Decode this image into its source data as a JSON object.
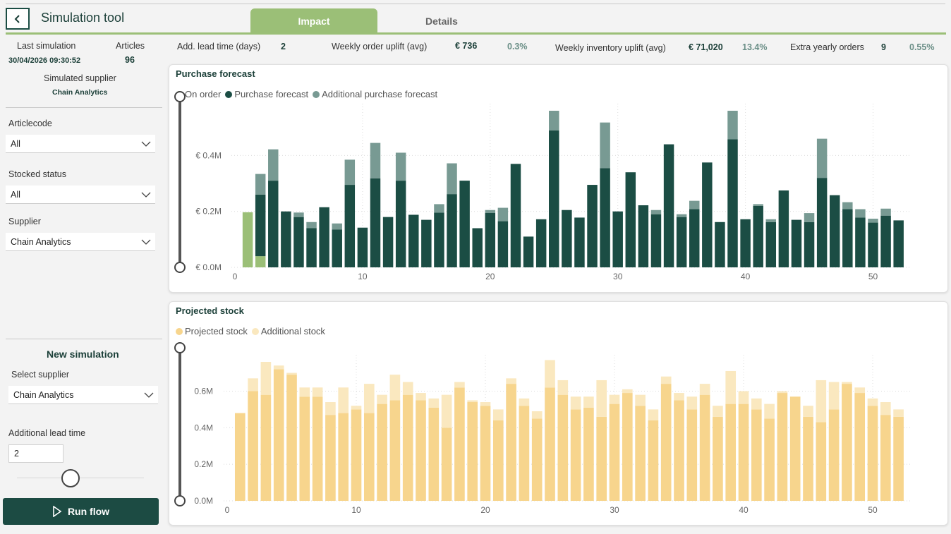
{
  "header": {
    "title": "Simulation tool",
    "tabs": [
      {
        "label": "Impact"
      },
      {
        "label": "Details"
      }
    ]
  },
  "sidebar": {
    "last_simulation_label": "Last simulation",
    "last_simulation_value": "30/04/2026 09:30:52",
    "articles_label": "Articles",
    "articles_value": "96",
    "simulated_supplier_label": "Simulated supplier",
    "simulated_supplier_value": "Chain Analytics",
    "filters": [
      {
        "label": "Articlecode",
        "value": "All"
      },
      {
        "label": "Stocked status",
        "value": "All"
      },
      {
        "label": "Supplier",
        "value": "Chain Analytics"
      }
    ],
    "new_simulation": {
      "title": "New simulation",
      "select_supplier_label": "Select supplier",
      "select_supplier_value": "Chain Analytics",
      "lead_time_label": "Additional lead time",
      "lead_time_value": "2",
      "run_label": "Run flow"
    }
  },
  "kpis": {
    "lead_time_label": "Add. lead time (days)",
    "lead_time_value": "2",
    "order_uplift_label": "Weekly order uplift (avg)",
    "order_uplift_value": "€ 736",
    "order_uplift_pct": "0.3%",
    "inventory_uplift_label": "Weekly inventory uplift (avg)",
    "inventory_uplift_value": "€ 71,020",
    "inventory_uplift_pct": "13.4%",
    "extra_orders_label": "Extra yearly orders",
    "extra_orders_value": "9",
    "extra_orders_pct": "0.55%"
  },
  "colors": {
    "accent": "#9bbf77",
    "dark_green": "#1b4d44",
    "grey_green": "#789a93",
    "stock": "#f7d58d",
    "stock_light": "#fae8bf"
  },
  "chart_data": [
    {
      "type": "bar",
      "stacked": true,
      "title": "Purchase forecast",
      "x": [
        1,
        2,
        3,
        4,
        5,
        6,
        7,
        8,
        9,
        10,
        11,
        12,
        13,
        14,
        15,
        16,
        17,
        18,
        19,
        20,
        21,
        22,
        23,
        24,
        25,
        26,
        27,
        28,
        29,
        30,
        31,
        32,
        33,
        34,
        35,
        36,
        37,
        38,
        39,
        40,
        41,
        42,
        43,
        44,
        45,
        46,
        47,
        48,
        49,
        50,
        51,
        52
      ],
      "xticks": [
        "0",
        "10",
        "20",
        "30",
        "40",
        "50"
      ],
      "yticks": [
        "€ 0.0M",
        "€ 0.2M",
        "€ 0.4M"
      ],
      "ylim": [
        0,
        0.56
      ],
      "series": [
        {
          "name": "On order",
          "color": "#9bbf77",
          "values": [
            0.197,
            0.04,
            0,
            0,
            0,
            0,
            0,
            0,
            0,
            0,
            0,
            0,
            0,
            0,
            0,
            0,
            0,
            0,
            0,
            0,
            0,
            0,
            0,
            0,
            0,
            0,
            0,
            0,
            0,
            0,
            0,
            0,
            0,
            0,
            0,
            0,
            0,
            0,
            0,
            0,
            0,
            0,
            0,
            0,
            0,
            0,
            0,
            0,
            0,
            0,
            0,
            0
          ]
        },
        {
          "name": "Purchase forecast",
          "color": "#1b4d44",
          "values": [
            0,
            0.22,
            0.31,
            0.2,
            0.18,
            0.14,
            0.215,
            0.135,
            0.295,
            0.142,
            0.318,
            0.18,
            0.31,
            0.188,
            0.17,
            0.196,
            0.262,
            0.31,
            0.14,
            0.195,
            0.165,
            0.37,
            0.11,
            0.172,
            0.49,
            0.205,
            0.178,
            0.295,
            0.355,
            0.2,
            0.34,
            0.222,
            0.19,
            0.44,
            0.18,
            0.208,
            0.375,
            0.162,
            0.458,
            0.172,
            0.22,
            0.162,
            0.275,
            0.17,
            0.162,
            0.32,
            0.258,
            0.208,
            0.178,
            0.16,
            0.185,
            0.168
          ]
        },
        {
          "name": "Additional purchase forecast",
          "color": "#789a93",
          "values": [
            0,
            0.074,
            0.112,
            0,
            0.016,
            0.022,
            0,
            0.022,
            0.09,
            0,
            0.127,
            0,
            0.1,
            0,
            0,
            0.03,
            0.11,
            0,
            0,
            0.01,
            0.048,
            0,
            0,
            0,
            0.07,
            0,
            0,
            0,
            0.163,
            0,
            0,
            0,
            0.015,
            0,
            0.01,
            0.03,
            0,
            0,
            0.102,
            0,
            0.006,
            0.01,
            0,
            0,
            0.032,
            0.14,
            0,
            0.025,
            0.03,
            0.014,
            0.025,
            0
          ]
        }
      ]
    },
    {
      "type": "bar",
      "stacked": true,
      "title": "Projected stock",
      "x": [
        1,
        2,
        3,
        4,
        5,
        6,
        7,
        8,
        9,
        10,
        11,
        12,
        13,
        14,
        15,
        16,
        17,
        18,
        19,
        20,
        21,
        22,
        23,
        24,
        25,
        26,
        27,
        28,
        29,
        30,
        31,
        32,
        33,
        34,
        35,
        36,
        37,
        38,
        39,
        40,
        41,
        42,
        43,
        44,
        45,
        46,
        47,
        48,
        49,
        50,
        51,
        52
      ],
      "xticks": [
        "0",
        "10",
        "20",
        "30",
        "40",
        "50"
      ],
      "yticks": [
        "0.0M",
        "0.2M",
        "0.4M",
        "0.6M"
      ],
      "ylim": [
        0,
        0.76
      ],
      "series": [
        {
          "name": "Projected stock",
          "color": "#f7d58d",
          "values": [
            0.48,
            0.6,
            0.58,
            0.72,
            0.69,
            0.57,
            0.57,
            0.47,
            0.48,
            0.5,
            0.48,
            0.53,
            0.55,
            0.58,
            0.55,
            0.51,
            0.4,
            0.62,
            0.54,
            0.52,
            0.44,
            0.64,
            0.52,
            0.45,
            0.62,
            0.58,
            0.5,
            0.51,
            0.46,
            0.53,
            0.59,
            0.52,
            0.44,
            0.64,
            0.55,
            0.5,
            0.58,
            0.46,
            0.53,
            0.53,
            0.5,
            0.45,
            0.59,
            0.57,
            0.46,
            0.43,
            0.5,
            0.64,
            0.59,
            0.52,
            0.47,
            0.46
          ]
        },
        {
          "name": "Additional stock",
          "color": "#fae8bf",
          "values": [
            0,
            0.07,
            0.18,
            0.02,
            0.01,
            0.05,
            0.05,
            0.07,
            0.14,
            0.02,
            0.16,
            0.05,
            0.14,
            0.07,
            0.04,
            0.05,
            0.18,
            0.03,
            0.01,
            0.02,
            0.06,
            0.03,
            0.04,
            0.04,
            0.15,
            0.08,
            0.07,
            0.06,
            0.2,
            0.05,
            0.02,
            0.06,
            0.06,
            0.04,
            0.04,
            0.07,
            0.06,
            0.06,
            0.18,
            0.07,
            0.06,
            0.08,
            0.01,
            0,
            0.06,
            0.23,
            0.15,
            0.01,
            0.03,
            0.04,
            0.07,
            0.04
          ]
        }
      ]
    }
  ]
}
